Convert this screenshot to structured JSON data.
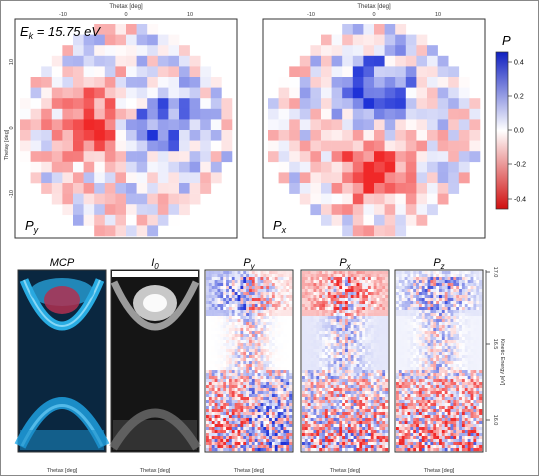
{
  "top_panels": {
    "energy_label": "E",
    "energy_sub": "k",
    "energy_value": " = 15.75 eV",
    "axis_label_x": "Thetax [deg]",
    "axis_label_y": "Thetay [deg]",
    "x_ticks": [
      "-10",
      "0",
      "10"
    ],
    "y_ticks": [
      "10",
      "0",
      "-10"
    ],
    "left_panel_label": "P",
    "left_panel_sub": "y",
    "right_panel_label": "P",
    "right_panel_sub": "x"
  },
  "colorbar": {
    "title": "P",
    "ticks": [
      "0.4",
      "0.2",
      "0.0",
      "-0.2",
      "-0.4"
    ],
    "colors": {
      "positive": "#0000ff",
      "zero": "#ffffff",
      "negative": "#ff0000"
    }
  },
  "bottom_panels": {
    "titles": [
      {
        "main": "MCP",
        "sub": ""
      },
      {
        "main": "I",
        "sub": "0"
      },
      {
        "main": "P",
        "sub": "y"
      },
      {
        "main": "P",
        "sub": "x"
      },
      {
        "main": "P",
        "sub": "z"
      }
    ],
    "x_label": "Thetax [deg]",
    "right_axis_label": "Kinetic Energy [eV]",
    "right_axis_ticks": [
      "17.0",
      "16.5",
      "16.0"
    ]
  },
  "colors": {
    "mcp_background": "#0a2740",
    "mcp_highlight": "#33c6ff",
    "mcp_hot": "#b03050",
    "positive": "#2a40d8",
    "negative": "#f03030"
  }
}
